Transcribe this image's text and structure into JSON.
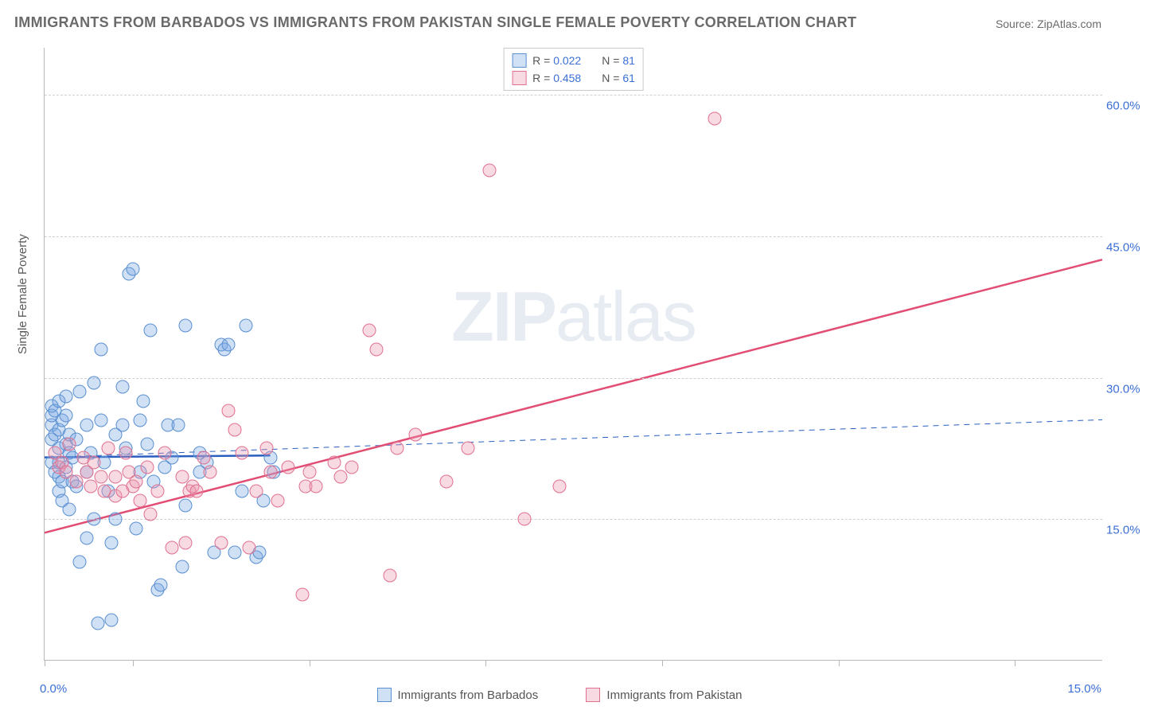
{
  "title": "IMMIGRANTS FROM BARBADOS VS IMMIGRANTS FROM PAKISTAN SINGLE FEMALE POVERTY CORRELATION CHART",
  "source_label": "Source: ZipAtlas.com",
  "watermark_bold": "ZIP",
  "watermark_thin": "atlas",
  "chart": {
    "type": "scatter",
    "yaxis_title": "Single Female Poverty",
    "xlim": [
      0.0,
      15.0
    ],
    "ylim": [
      0.0,
      65.0
    ],
    "xtick_positions": [
      0.0,
      1.25,
      3.75,
      6.25,
      8.75,
      11.25,
      13.75
    ],
    "xlabel_start": "0.0%",
    "xlabel_end": "15.0%",
    "yticks": [
      15.0,
      30.0,
      45.0,
      60.0
    ],
    "ytick_labels": [
      "15.0%",
      "30.0%",
      "45.0%",
      "60.0%"
    ],
    "background_color": "#ffffff",
    "grid_color": "#d0d0d0",
    "axis_color": "#b8b8b8",
    "tick_label_color": "#3b6fd6",
    "series": [
      {
        "name": "Immigrants from Barbados",
        "marker_fill": "rgba(120,165,225,0.35)",
        "marker_stroke": "#5a8fd0",
        "R": "0.022",
        "N": "81",
        "trend_solid": {
          "x1": 0.0,
          "y1": 21.5,
          "x2": 3.2,
          "y2": 21.7,
          "color": "#2a5fc0",
          "width": 2.5
        },
        "trend_dashed": {
          "x1": 0.0,
          "y1": 21.5,
          "x2": 15.0,
          "y2": 25.5,
          "color": "#2a5fc0",
          "width": 1
        },
        "points": [
          [
            0.1,
            21.0
          ],
          [
            0.1,
            23.5
          ],
          [
            0.1,
            25.0
          ],
          [
            0.1,
            26.0
          ],
          [
            0.1,
            27.0
          ],
          [
            0.15,
            20.0
          ],
          [
            0.15,
            24.0
          ],
          [
            0.15,
            26.5
          ],
          [
            0.2,
            18.0
          ],
          [
            0.2,
            19.5
          ],
          [
            0.2,
            21.0
          ],
          [
            0.2,
            22.5
          ],
          [
            0.2,
            24.5
          ],
          [
            0.2,
            27.5
          ],
          [
            0.25,
            17.0
          ],
          [
            0.25,
            19.0
          ],
          [
            0.25,
            25.5
          ],
          [
            0.3,
            20.5
          ],
          [
            0.3,
            23.0
          ],
          [
            0.3,
            26.0
          ],
          [
            0.3,
            28.0
          ],
          [
            0.35,
            16.0
          ],
          [
            0.35,
            22.0
          ],
          [
            0.35,
            24.0
          ],
          [
            0.4,
            19.0
          ],
          [
            0.4,
            21.5
          ],
          [
            0.45,
            18.5
          ],
          [
            0.45,
            23.5
          ],
          [
            0.5,
            28.5
          ],
          [
            0.5,
            10.5
          ],
          [
            0.6,
            13.0
          ],
          [
            0.6,
            20.0
          ],
          [
            0.6,
            25.0
          ],
          [
            0.65,
            22.0
          ],
          [
            0.7,
            29.5
          ],
          [
            0.7,
            15.0
          ],
          [
            0.75,
            4.0
          ],
          [
            0.8,
            25.5
          ],
          [
            0.8,
            33.0
          ],
          [
            0.85,
            21.0
          ],
          [
            0.9,
            18.0
          ],
          [
            0.95,
            12.5
          ],
          [
            0.95,
            4.3
          ],
          [
            1.0,
            15.0
          ],
          [
            1.0,
            24.0
          ],
          [
            1.1,
            25.0
          ],
          [
            1.1,
            29.0
          ],
          [
            1.15,
            22.5
          ],
          [
            1.2,
            41.0
          ],
          [
            1.25,
            41.5
          ],
          [
            1.3,
            14.0
          ],
          [
            1.35,
            20.0
          ],
          [
            1.35,
            25.5
          ],
          [
            1.4,
            27.5
          ],
          [
            1.45,
            23.0
          ],
          [
            1.5,
            35.0
          ],
          [
            1.55,
            19.0
          ],
          [
            1.6,
            7.5
          ],
          [
            1.65,
            8.0
          ],
          [
            1.7,
            20.5
          ],
          [
            1.75,
            25.0
          ],
          [
            1.8,
            21.5
          ],
          [
            1.9,
            25.0
          ],
          [
            1.95,
            10.0
          ],
          [
            2.0,
            16.5
          ],
          [
            2.0,
            35.5
          ],
          [
            2.2,
            20.0
          ],
          [
            2.2,
            22.0
          ],
          [
            2.3,
            21.0
          ],
          [
            2.4,
            11.5
          ],
          [
            2.5,
            33.5
          ],
          [
            2.55,
            33.0
          ],
          [
            2.6,
            33.5
          ],
          [
            2.7,
            11.5
          ],
          [
            2.8,
            18.0
          ],
          [
            2.85,
            35.5
          ],
          [
            3.0,
            11.0
          ],
          [
            3.05,
            11.5
          ],
          [
            3.1,
            17.0
          ],
          [
            3.2,
            21.5
          ],
          [
            3.25,
            20.0
          ]
        ]
      },
      {
        "name": "Immigrants from Pakistan",
        "marker_fill": "rgba(235,150,175,0.35)",
        "marker_stroke": "#e0708f",
        "R": "0.458",
        "N": "61",
        "trend_solid": {
          "x1": 0.0,
          "y1": 13.5,
          "x2": 15.0,
          "y2": 42.5,
          "color": "#e24d74",
          "width": 2.5
        },
        "points": [
          [
            0.15,
            22.0
          ],
          [
            0.2,
            20.5
          ],
          [
            0.25,
            21.0
          ],
          [
            0.3,
            20.0
          ],
          [
            0.35,
            23.0
          ],
          [
            0.45,
            19.0
          ],
          [
            0.55,
            21.5
          ],
          [
            0.6,
            20.0
          ],
          [
            0.65,
            18.5
          ],
          [
            0.7,
            21.0
          ],
          [
            0.8,
            19.5
          ],
          [
            0.85,
            18.0
          ],
          [
            0.9,
            22.5
          ],
          [
            1.0,
            17.5
          ],
          [
            1.0,
            19.5
          ],
          [
            1.1,
            18.0
          ],
          [
            1.15,
            22.0
          ],
          [
            1.2,
            20.0
          ],
          [
            1.25,
            18.5
          ],
          [
            1.3,
            19.0
          ],
          [
            1.35,
            17.0
          ],
          [
            1.45,
            20.5
          ],
          [
            1.5,
            15.5
          ],
          [
            1.6,
            18.0
          ],
          [
            1.7,
            22.0
          ],
          [
            1.8,
            12.0
          ],
          [
            1.95,
            19.5
          ],
          [
            2.0,
            12.5
          ],
          [
            2.05,
            18.0
          ],
          [
            2.1,
            18.5
          ],
          [
            2.15,
            18.0
          ],
          [
            2.25,
            21.5
          ],
          [
            2.35,
            20.0
          ],
          [
            2.5,
            12.5
          ],
          [
            2.6,
            26.5
          ],
          [
            2.7,
            24.5
          ],
          [
            2.8,
            22.0
          ],
          [
            2.9,
            12.0
          ],
          [
            3.0,
            18.0
          ],
          [
            3.15,
            22.5
          ],
          [
            3.2,
            20.0
          ],
          [
            3.3,
            17.0
          ],
          [
            3.45,
            20.5
          ],
          [
            3.65,
            7.0
          ],
          [
            3.7,
            18.5
          ],
          [
            3.75,
            20.0
          ],
          [
            3.85,
            18.5
          ],
          [
            4.1,
            21.0
          ],
          [
            4.2,
            19.5
          ],
          [
            4.35,
            20.5
          ],
          [
            4.6,
            35.0
          ],
          [
            4.7,
            33.0
          ],
          [
            4.9,
            9.0
          ],
          [
            5.0,
            22.5
          ],
          [
            5.25,
            24.0
          ],
          [
            5.7,
            19.0
          ],
          [
            6.0,
            22.5
          ],
          [
            6.3,
            52.0
          ],
          [
            6.8,
            15.0
          ],
          [
            7.3,
            18.5
          ],
          [
            9.5,
            57.5
          ]
        ]
      }
    ],
    "legend_top_labels": {
      "R_prefix": "R = ",
      "N_prefix": "N = "
    },
    "legend_bottom": [
      "Immigrants from Barbados",
      "Immigrants from Pakistan"
    ]
  }
}
